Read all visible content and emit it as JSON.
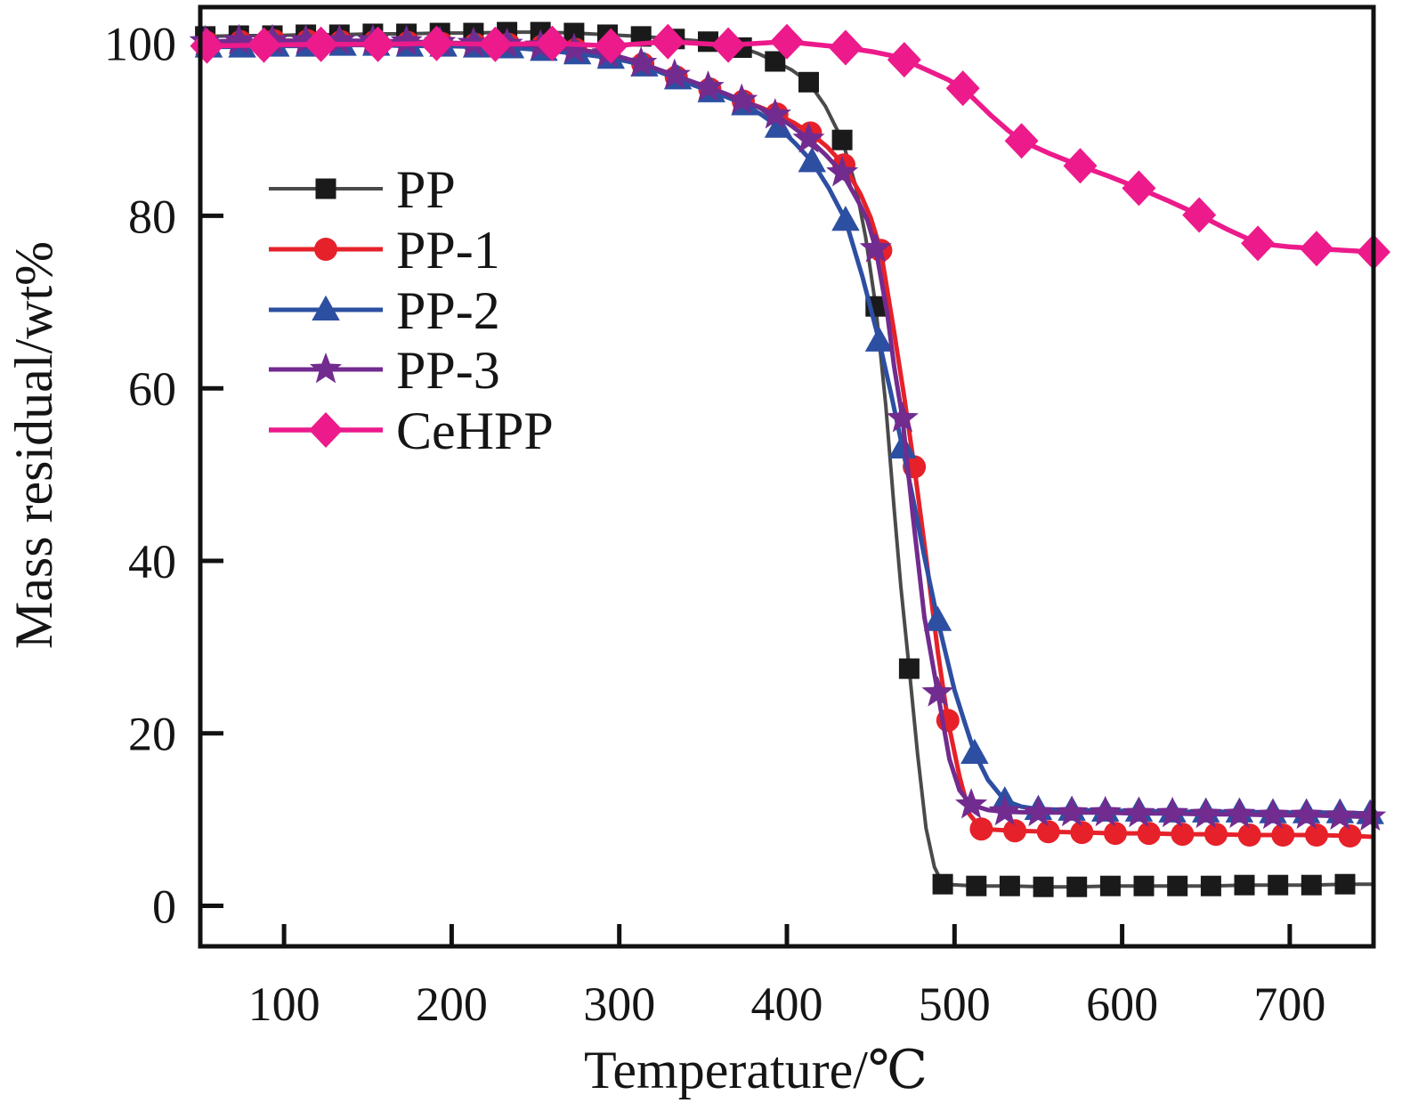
{
  "figure": {
    "background": "#ffffff",
    "frame_color": "#111111"
  },
  "chart_data": {
    "type": "line",
    "title": "",
    "xlabel": "Temperature/℃",
    "ylabel": "Mass residual/wt%",
    "x_range": [
      50,
      750
    ],
    "y_range": [
      -4.7,
      104.2
    ],
    "x_ticks": [
      100,
      200,
      300,
      400,
      500,
      600,
      700
    ],
    "y_ticks": [
      0,
      20,
      40,
      60,
      80,
      100
    ],
    "grid": false,
    "legend": {
      "position": "inside-upper-left",
      "items": [
        "PP",
        "PP-1",
        "PP-2",
        "PP-3",
        "CeHPP"
      ]
    },
    "series": [
      {
        "name": "PP",
        "marker": "square",
        "marker_size": 23,
        "marker_color": "#1a1a1a",
        "line_color": "#4a4a4a",
        "line_width": 4,
        "points": [
          [
            53,
            100.8
          ],
          [
            73,
            100.9
          ],
          [
            93,
            100.9
          ],
          [
            113,
            101
          ],
          [
            133,
            101
          ],
          [
            153,
            101.1
          ],
          [
            173,
            101.1
          ],
          [
            193,
            101.2
          ],
          [
            213,
            101.2
          ],
          [
            233,
            101.3
          ],
          [
            253,
            101.3
          ],
          [
            273,
            101.2
          ],
          [
            293,
            101
          ],
          [
            313,
            100.8
          ],
          [
            333,
            100.5
          ],
          [
            353,
            100.2
          ],
          [
            373,
            99.5
          ],
          [
            393,
            97.9
          ],
          [
            413,
            95.5
          ],
          [
            433,
            88.8
          ],
          [
            453,
            69.5
          ],
          [
            473,
            27.5
          ],
          [
            493,
            2.5
          ],
          [
            513,
            2.3
          ],
          [
            533,
            2.3
          ],
          [
            553,
            2.2
          ],
          [
            573,
            2.2
          ],
          [
            593,
            2.3
          ],
          [
            613,
            2.3
          ],
          [
            633,
            2.3
          ],
          [
            653,
            2.3
          ],
          [
            673,
            2.4
          ],
          [
            693,
            2.4
          ],
          [
            713,
            2.4
          ],
          [
            733,
            2.5
          ]
        ],
        "line_extra": [
          [
            50,
            100.8
          ],
          [
            383,
            98.8
          ],
          [
            403,
            96.9
          ],
          [
            423,
            92.7
          ],
          [
            441,
            83.5
          ],
          [
            447,
            77.5
          ],
          [
            459,
            58
          ],
          [
            464,
            46
          ],
          [
            468,
            37
          ],
          [
            478,
            17.5
          ],
          [
            483,
            9
          ],
          [
            488,
            4.5
          ],
          [
            503,
            2.4
          ],
          [
            750,
            2.5
          ]
        ]
      },
      {
        "name": "PP-1",
        "marker": "circle",
        "marker_size": 26,
        "marker_color": "#e62129",
        "line_color": "#e62129",
        "line_width": 5,
        "points": [
          [
            54,
            100.1
          ],
          [
            74,
            100.2
          ],
          [
            94,
            100.3
          ],
          [
            114,
            100.3
          ],
          [
            134,
            100.2
          ],
          [
            154,
            100.2
          ],
          [
            174,
            100.1
          ],
          [
            194,
            100
          ],
          [
            214,
            99.9
          ],
          [
            234,
            99.9
          ],
          [
            254,
            99.7
          ],
          [
            274,
            99.3
          ],
          [
            294,
            98.8
          ],
          [
            314,
            97.6
          ],
          [
            334,
            96.1
          ],
          [
            354,
            94.7
          ],
          [
            374,
            93.3
          ],
          [
            394,
            91.8
          ],
          [
            414,
            89.6
          ],
          [
            434,
            85.9
          ],
          [
            456,
            76
          ],
          [
            476,
            50.9
          ],
          [
            496,
            21.5
          ],
          [
            516,
            8.9
          ],
          [
            536,
            8.7
          ],
          [
            556,
            8.6
          ],
          [
            576,
            8.5
          ],
          [
            596,
            8.4
          ],
          [
            616,
            8.4
          ],
          [
            636,
            8.3
          ],
          [
            656,
            8.3
          ],
          [
            676,
            8.2
          ],
          [
            696,
            8.2
          ],
          [
            716,
            8.2
          ],
          [
            736,
            8.1
          ]
        ],
        "line_extra": [
          [
            50,
            100.1
          ],
          [
            304,
            98.2
          ],
          [
            324,
            96.9
          ],
          [
            344,
            95.4
          ],
          [
            364,
            94
          ],
          [
            384,
            92.6
          ],
          [
            404,
            90.8
          ],
          [
            424,
            88
          ],
          [
            444,
            82.5
          ],
          [
            450,
            79.8
          ],
          [
            464,
            66.5
          ],
          [
            470,
            59
          ],
          [
            483,
            40.5
          ],
          [
            490,
            29.5
          ],
          [
            503,
            15
          ],
          [
            509,
            10.6
          ],
          [
            750,
            8
          ]
        ]
      },
      {
        "name": "PP-2",
        "marker": "triangle",
        "marker_size": 30,
        "marker_color": "#2d4fa2",
        "line_color": "#2d4fa2",
        "line_width": 5,
        "points": [
          [
            55,
            99.6
          ],
          [
            75,
            99.6
          ],
          [
            95,
            99.7
          ],
          [
            115,
            99.7
          ],
          [
            135,
            99.8
          ],
          [
            155,
            99.8
          ],
          [
            175,
            99.7
          ],
          [
            195,
            99.7
          ],
          [
            215,
            99.6
          ],
          [
            235,
            99.5
          ],
          [
            255,
            99.2
          ],
          [
            275,
            98.8
          ],
          [
            295,
            98.3
          ],
          [
            315,
            97.4
          ],
          [
            335,
            95.9
          ],
          [
            355,
            94.4
          ],
          [
            375,
            92.9
          ],
          [
            395,
            90.3
          ],
          [
            415,
            86.3
          ],
          [
            435,
            79.5
          ],
          [
            455,
            65.5
          ],
          [
            469,
            53.1
          ],
          [
            490,
            33.1
          ],
          [
            512,
            17.7
          ],
          [
            530,
            12.2
          ],
          [
            550,
            11.2
          ],
          [
            570,
            11.1
          ],
          [
            590,
            11
          ],
          [
            610,
            11
          ],
          [
            630,
            10.9
          ],
          [
            650,
            10.9
          ],
          [
            670,
            10.9
          ],
          [
            690,
            10.8
          ],
          [
            710,
            10.8
          ],
          [
            730,
            10.8
          ],
          [
            748,
            10.7
          ]
        ],
        "line_extra": [
          [
            50,
            99.6
          ],
          [
            305,
            97.9
          ],
          [
            325,
            96.6
          ],
          [
            345,
            95.1
          ],
          [
            365,
            93.7
          ],
          [
            385,
            91.7
          ],
          [
            405,
            88.4
          ],
          [
            425,
            83.2
          ],
          [
            445,
            73
          ],
          [
            462,
            59.5
          ],
          [
            476,
            46.5
          ],
          [
            482,
            40.5
          ],
          [
            500,
            25
          ],
          [
            506,
            21.3
          ],
          [
            520,
            14.6
          ],
          [
            540,
            11.5
          ],
          [
            750,
            10.7
          ]
        ]
      },
      {
        "name": "PP-3",
        "marker": "star",
        "marker_size": 38,
        "marker_color": "#722b8f",
        "line_color": "#722b8f",
        "line_width": 5,
        "points": [
          [
            53,
            100.2
          ],
          [
            73,
            100.3
          ],
          [
            93,
            100.3
          ],
          [
            113,
            100.3
          ],
          [
            133,
            100.3
          ],
          [
            153,
            100.3
          ],
          [
            173,
            100.2
          ],
          [
            193,
            100.1
          ],
          [
            213,
            100
          ],
          [
            233,
            99.9
          ],
          [
            253,
            99.7
          ],
          [
            273,
            99.3
          ],
          [
            293,
            98.8
          ],
          [
            313,
            97.7
          ],
          [
            333,
            96.3
          ],
          [
            353,
            94.9
          ],
          [
            373,
            93.4
          ],
          [
            393,
            91.7
          ],
          [
            413,
            88.9
          ],
          [
            433,
            85
          ],
          [
            453,
            76.2
          ],
          [
            469,
            56.5
          ],
          [
            490,
            24.7
          ],
          [
            510,
            11.7
          ],
          [
            530,
            10.9
          ],
          [
            550,
            10.8
          ],
          [
            570,
            10.8
          ],
          [
            590,
            10.8
          ],
          [
            610,
            10.7
          ],
          [
            630,
            10.7
          ],
          [
            650,
            10.6
          ],
          [
            670,
            10.6
          ],
          [
            690,
            10.5
          ],
          [
            710,
            10.5
          ],
          [
            730,
            10.4
          ],
          [
            748,
            10.3
          ]
        ],
        "line_extra": [
          [
            50,
            100.2
          ],
          [
            303,
            98.3
          ],
          [
            323,
            97
          ],
          [
            343,
            95.6
          ],
          [
            363,
            94.2
          ],
          [
            383,
            92.6
          ],
          [
            403,
            90.4
          ],
          [
            423,
            87.1
          ],
          [
            443,
            81.5
          ],
          [
            448,
            79.5
          ],
          [
            460,
            68.5
          ],
          [
            464,
            62.5
          ],
          [
            475,
            45.5
          ],
          [
            482,
            33.5
          ],
          [
            497,
            17
          ],
          [
            503,
            13.4
          ],
          [
            520,
            11.1
          ],
          [
            750,
            10.3
          ]
        ]
      },
      {
        "name": "CeHPP",
        "marker": "diamond",
        "marker_size": 40,
        "marker_color": "#ec1a8b",
        "line_color": "#ec1a8b",
        "line_width": 5.5,
        "points": [
          [
            54,
            99.7
          ],
          [
            88,
            99.8
          ],
          [
            122,
            99.9
          ],
          [
            156,
            99.9
          ],
          [
            191,
            100
          ],
          [
            226,
            99.9
          ],
          [
            260,
            100
          ],
          [
            295,
            99.7
          ],
          [
            329,
            100.2
          ],
          [
            365,
            99.8
          ],
          [
            400,
            100.2
          ],
          [
            435,
            99.5
          ],
          [
            470,
            98.1
          ],
          [
            505,
            94.8
          ],
          [
            540,
            88.7
          ],
          [
            575,
            85.8
          ],
          [
            610,
            83.2
          ],
          [
            646,
            80.1
          ],
          [
            681,
            76.8
          ],
          [
            716,
            76.2
          ],
          [
            750,
            75.8
          ]
        ],
        "line_extra": [
          [
            50,
            99.7
          ],
          [
            452,
            99
          ],
          [
            462,
            98.6
          ],
          [
            487,
            96.6
          ],
          [
            496,
            95.8
          ],
          [
            522,
            91.6
          ],
          [
            532,
            89.9
          ],
          [
            557,
            87.2
          ],
          [
            592,
            84.6
          ],
          [
            628,
            81.7
          ],
          [
            663,
            78.4
          ],
          [
            700,
            76.4
          ],
          [
            733,
            76
          ]
        ]
      }
    ]
  }
}
